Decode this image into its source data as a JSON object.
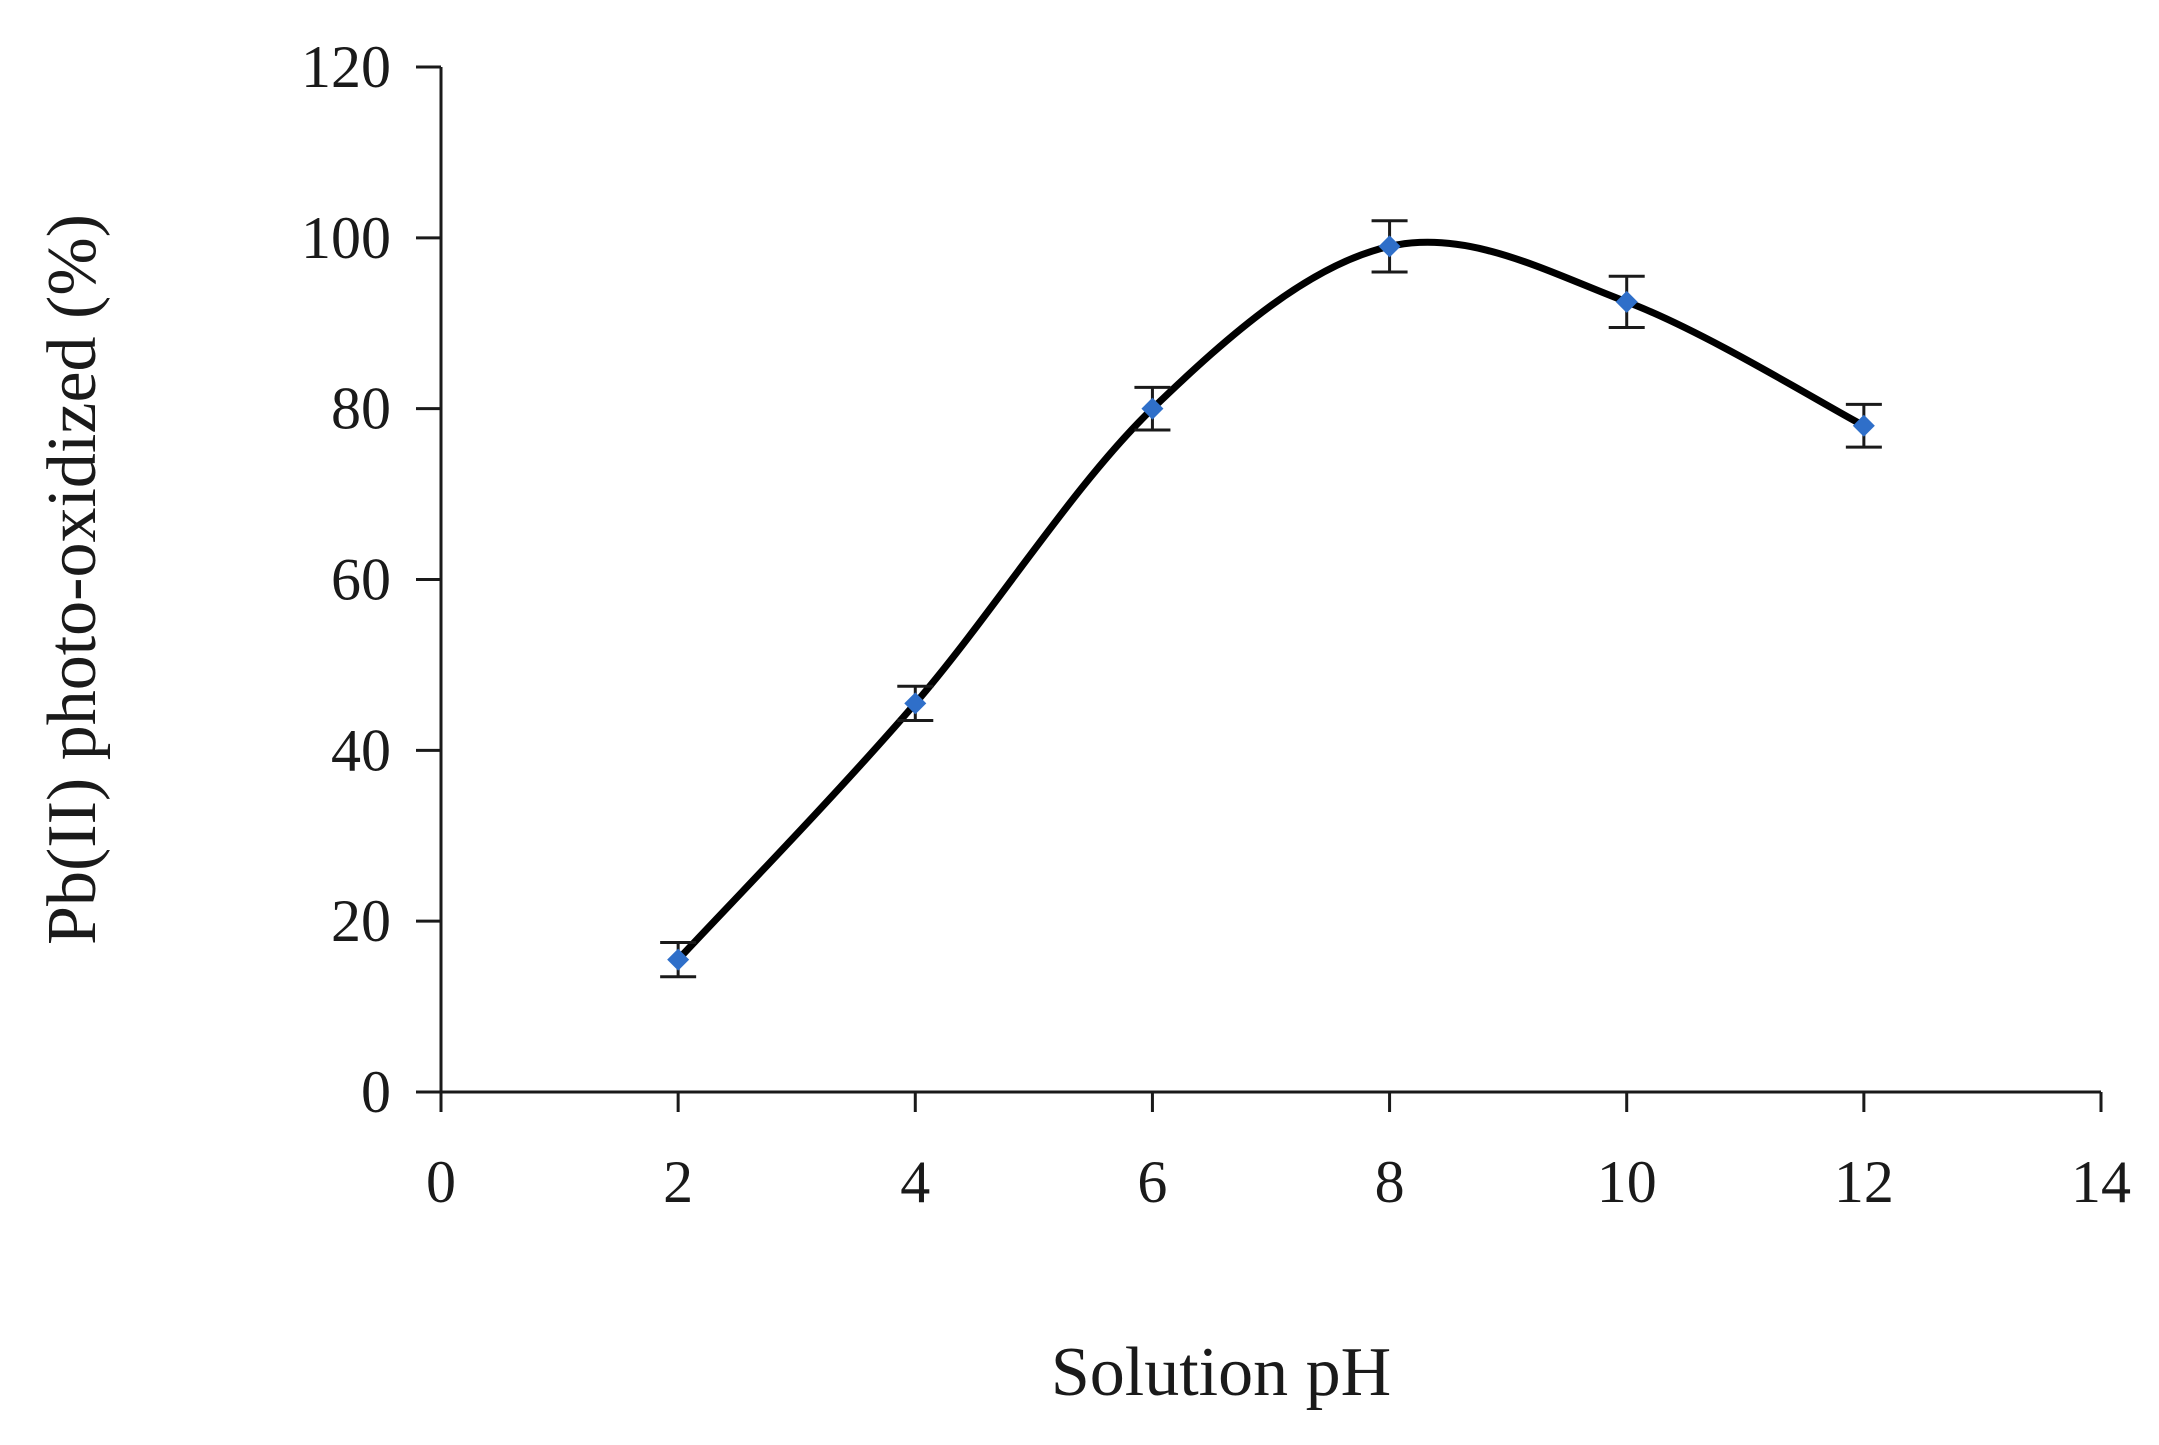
{
  "chart_data": {
    "type": "scatter",
    "title": "",
    "xlabel": "Solution pH",
    "ylabel": "Pb(II) photo-oxidized (%)",
    "xlim": [
      0,
      14
    ],
    "ylim": [
      0,
      120
    ],
    "x_ticks": [
      0,
      2,
      4,
      6,
      8,
      10,
      12,
      14
    ],
    "y_ticks": [
      0,
      20,
      40,
      60,
      80,
      100,
      120
    ],
    "grid": false,
    "legend": "none",
    "smoothed_line": true,
    "series": [
      {
        "x": [
          2,
          4,
          6,
          8,
          10,
          12
        ],
        "y": [
          15.5,
          45.5,
          80,
          99,
          92.5,
          78
        ],
        "error": [
          2,
          2,
          2.5,
          3,
          3,
          2.5
        ],
        "marker_color": "#2f6fc9",
        "line_color": "#000000"
      }
    ]
  }
}
